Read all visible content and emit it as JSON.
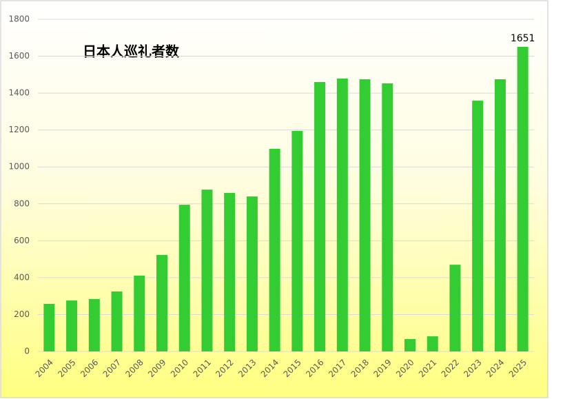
{
  "chart_data": {
    "type": "bar",
    "title": "日本人巡礼者数",
    "categories": [
      "2004",
      "2005",
      "2006",
      "2007",
      "2008",
      "2009",
      "2010",
      "2011",
      "2012",
      "2013",
      "2014",
      "2015",
      "2016",
      "2017",
      "2018",
      "2019",
      "2020",
      "2021",
      "2022",
      "2023",
      "2024",
      "2025"
    ],
    "values": [
      258,
      276,
      284,
      325,
      411,
      523,
      795,
      877,
      859,
      840,
      1098,
      1195,
      1460,
      1479,
      1475,
      1453,
      67,
      82,
      470,
      1359,
      1475,
      1651
    ],
    "color": "#33cc33",
    "ylim": [
      0,
      1800
    ],
    "yticks": [
      0,
      200,
      400,
      600,
      800,
      1000,
      1200,
      1400,
      1600,
      1800
    ],
    "grid": true,
    "data_labels": "last"
  }
}
